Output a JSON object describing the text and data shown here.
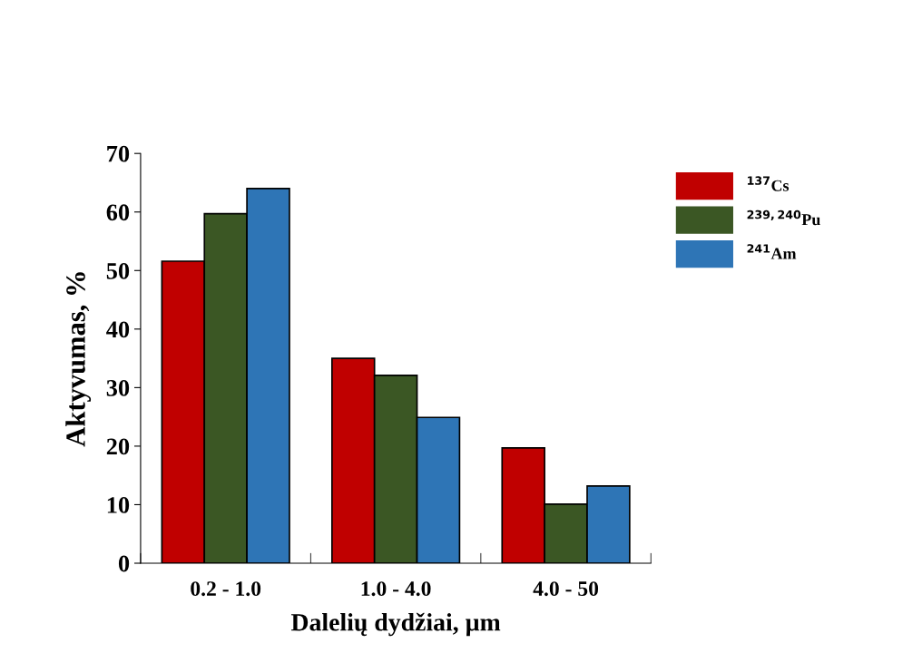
{
  "chart_data": {
    "type": "bar",
    "xlabel": "Dalelių dydžiai, µm",
    "ylabel": "Aktyvumas, %",
    "categories": [
      "0.2 - 1.0",
      "1.0 - 4.0",
      "4.0 - 50"
    ],
    "series": [
      {
        "name": "$^{137}$Cs",
        "color": "#c00000",
        "values": [
          51.6,
          35.0,
          19.7
        ]
      },
      {
        "name": "$^{239,240}$Pu",
        "color": "#3b5724",
        "values": [
          59.7,
          32.1,
          10.1
        ]
      },
      {
        "name": "$^{241}$Am",
        "color": "#2e75b6",
        "values": [
          64.0,
          24.9,
          13.2
        ]
      }
    ],
    "ylim": [
      0,
      70
    ],
    "yticks": [
      0,
      10,
      20,
      30,
      40,
      50,
      60,
      70
    ],
    "grid": false,
    "legend": "top right"
  }
}
